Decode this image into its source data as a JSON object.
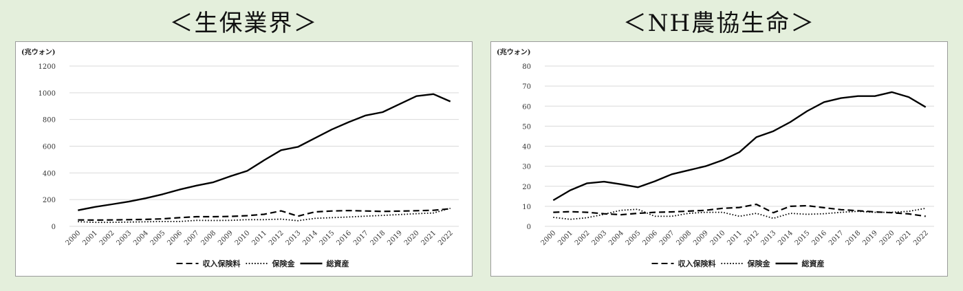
{
  "panels": [
    {
      "title": "＜生保業界＞",
      "chart_data": {
        "type": "line",
        "unit_label": "(兆ウォン)",
        "ylim": [
          0,
          1200
        ],
        "ytick_step": 200,
        "grid": "horizontal",
        "legend_position": "bottom",
        "x": [
          "2000",
          "2001",
          "2002",
          "2003",
          "2004",
          "2005",
          "2006",
          "2007",
          "2008",
          "2009",
          "2010",
          "2011",
          "2012",
          "2013",
          "2014",
          "2015",
          "2016",
          "2017",
          "2018",
          "2019",
          "2020",
          "2021",
          "2022"
        ],
        "series": [
          {
            "name": "収入保険料",
            "style": "dashed",
            "values": [
              48,
              47,
              48,
              50,
              52,
              56,
              65,
              72,
              72,
              74,
              80,
              90,
              116,
              76,
              108,
              115,
              118,
              115,
              112,
              114,
              117,
              120,
              132
            ]
          },
          {
            "name": "保険金",
            "style": "dotted",
            "values": [
              35,
              30,
              30,
              32,
              34,
              36,
              36,
              45,
              44,
              45,
              50,
              50,
              54,
              42,
              60,
              65,
              70,
              76,
              82,
              88,
              95,
              100,
              135
            ]
          },
          {
            "name": "総資産",
            "style": "solid",
            "values": [
              120,
              145,
              165,
              185,
              210,
              240,
              275,
              305,
              330,
              375,
              415,
              495,
              570,
              595,
              660,
              725,
              780,
              830,
              855,
              915,
              975,
              990,
              935
            ]
          }
        ]
      }
    },
    {
      "title": "＜NH農協生命＞",
      "chart_data": {
        "type": "line",
        "unit_label": "(兆ウォン)",
        "ylim": [
          0,
          80
        ],
        "ytick_step": 10,
        "grid": "horizontal",
        "legend_position": "bottom",
        "x": [
          "2000",
          "2001",
          "2002",
          "2003",
          "2004",
          "2005",
          "2006",
          "2007",
          "2008",
          "2009",
          "2010",
          "2011",
          "2012",
          "2013",
          "2014",
          "2015",
          "2016",
          "2017",
          "2018",
          "2019",
          "2020",
          "2021",
          "2022"
        ],
        "series": [
          {
            "name": "収入保険料",
            "style": "dashed",
            "values": [
              7,
              7.3,
              7,
              6.3,
              5.8,
              6.5,
              7,
              7.2,
              7.6,
              8,
              9,
              9.4,
              11,
              6.8,
              10,
              10.3,
              9.3,
              8.3,
              7.8,
              7.2,
              6.8,
              6.2,
              5
            ]
          },
          {
            "name": "保険金",
            "style": "dotted",
            "values": [
              4.5,
              3.5,
              4.3,
              6,
              8,
              8.5,
              5,
              5,
              6.5,
              7,
              7,
              5,
              6.5,
              4,
              6.5,
              6,
              6.3,
              7,
              7.5,
              7,
              7,
              7.5,
              9
            ]
          },
          {
            "name": "総資産",
            "style": "solid",
            "values": [
              13,
              18,
              21.5,
              22.3,
              21,
              19.5,
              22.5,
              26,
              28,
              30,
              33,
              37,
              44.5,
              47.5,
              52,
              57.5,
              62,
              64,
              65,
              65,
              67,
              64.5,
              59.5
            ]
          }
        ]
      }
    }
  ]
}
